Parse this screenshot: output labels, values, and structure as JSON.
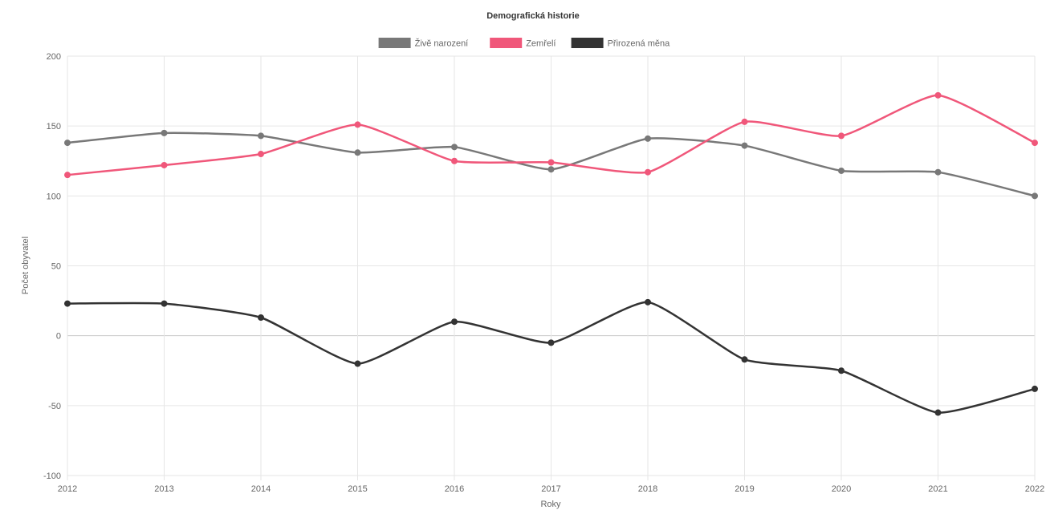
{
  "chart_data": {
    "type": "line",
    "title": "Demografická historie",
    "xlabel": "Roky",
    "ylabel": "Počet obyvatel",
    "ylim": [
      -100,
      200
    ],
    "yticks": [
      200,
      150,
      100,
      50,
      0,
      -50,
      -100
    ],
    "categories": [
      "2012",
      "2013",
      "2014",
      "2015",
      "2016",
      "2017",
      "2018",
      "2019",
      "2020",
      "2021",
      "2022"
    ],
    "grid": true,
    "legend_position": "top",
    "series": [
      {
        "name": "Živě narození",
        "color": "#787878",
        "values": [
          138,
          145,
          143,
          131,
          135,
          119,
          141,
          136,
          118,
          117,
          100
        ]
      },
      {
        "name": "Zemřelí",
        "color": "#f0577a",
        "values": [
          115,
          122,
          130,
          151,
          125,
          124,
          117,
          153,
          143,
          172,
          138
        ]
      },
      {
        "name": "Přirozená měna",
        "color": "#333333",
        "values": [
          23,
          23,
          13,
          -20,
          10,
          -5,
          24,
          -17,
          -25,
          -55,
          -38
        ]
      }
    ]
  }
}
